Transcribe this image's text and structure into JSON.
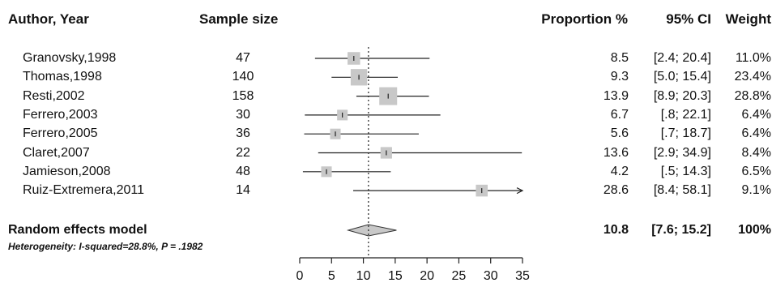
{
  "headers": {
    "author": "Author, Year",
    "sample": "Sample size",
    "proportion": "Proportion %",
    "ci": "95% CI",
    "weight": "Weight"
  },
  "chart_data": {
    "type": "forest",
    "studies": [
      {
        "author": "Granovsky,1998",
        "n": "47",
        "est": 8.5,
        "lo": 2.4,
        "hi": 20.4,
        "est_label": "8.5",
        "ci_label": "[2.4; 20.4]",
        "weight_label": "11.0%",
        "weight": 11.0
      },
      {
        "author": "Thomas,1998",
        "n": "140",
        "est": 9.3,
        "lo": 5.0,
        "hi": 15.4,
        "est_label": "9.3",
        "ci_label": "[5.0; 15.4]",
        "weight_label": "23.4%",
        "weight": 23.4
      },
      {
        "author": "Resti,2002",
        "n": "158",
        "est": 13.9,
        "lo": 8.9,
        "hi": 20.3,
        "est_label": "13.9",
        "ci_label": "[8.9; 20.3]",
        "weight_label": "28.8%",
        "weight": 28.8
      },
      {
        "author": "Ferrero,2003",
        "n": "30",
        "est": 6.7,
        "lo": 0.8,
        "hi": 22.1,
        "est_label": "6.7",
        "ci_label": "[.8; 22.1]",
        "weight_label": "6.4%",
        "weight": 6.4
      },
      {
        "author": "Ferrero,2005",
        "n": "36",
        "est": 5.6,
        "lo": 0.7,
        "hi": 18.7,
        "est_label": "5.6",
        "ci_label": "[.7; 18.7]",
        "weight_label": "6.4%",
        "weight": 6.4
      },
      {
        "author": "Claret,2007",
        "n": "22",
        "est": 13.6,
        "lo": 2.9,
        "hi": 34.9,
        "est_label": "13.6",
        "ci_label": "[2.9; 34.9]",
        "weight_label": "8.4%",
        "weight": 8.4
      },
      {
        "author": "Jamieson,2008",
        "n": "48",
        "est": 4.2,
        "lo": 0.5,
        "hi": 14.3,
        "est_label": "4.2",
        "ci_label": "[.5; 14.3]",
        "weight_label": "6.5%",
        "weight": 6.5
      },
      {
        "author": "Ruiz-Extremera,2011",
        "n": "14",
        "est": 28.6,
        "lo": 8.4,
        "hi": 58.1,
        "est_label": "28.6",
        "ci_label": "[8.4; 58.1]",
        "weight_label": "9.1%",
        "weight": 9.1
      }
    ],
    "summary": {
      "label": "Random effects model",
      "est": 10.8,
      "lo": 7.6,
      "hi": 15.2,
      "est_label": "10.8",
      "ci_label": "[7.6; 15.2]",
      "weight_label": "100%"
    },
    "heterogeneity_label": "Heterogeneity: I-squared=28.8%,",
    "heterogeneity_p": "P = .1982",
    "xlim": [
      0,
      35
    ],
    "xticks": [
      "0",
      "5",
      "10",
      "15",
      "20",
      "25",
      "30",
      "35"
    ],
    "reference_line": 10.8
  }
}
